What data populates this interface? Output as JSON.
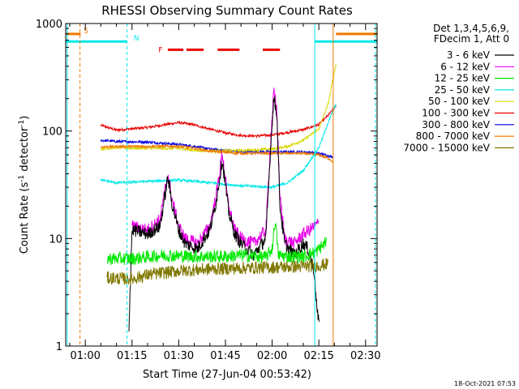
{
  "chart_data": {
    "type": "line",
    "title": "RHESSI Observing Summary Count Rates",
    "xlabel": "Start Time (27-Jun-04 00:53:42)",
    "ylabel_main": "Count Rate (s",
    "ylabel_sup": "-1",
    "ylabel_mid": " detector",
    "ylabel_sup2": "-1",
    "ylabel_end": ")",
    "footer": "18-Oct-2021 07:53",
    "xlim_min": [
      53.7,
      153.7
    ],
    "ylim": [
      1,
      1000
    ],
    "y_scale": "log",
    "x_ticks": [
      {
        "min": 60,
        "label": "01:00"
      },
      {
        "min": 75,
        "label": "01:15"
      },
      {
        "min": 90,
        "label": "01:30"
      },
      {
        "min": 105,
        "label": "01:45"
      },
      {
        "min": 120,
        "label": "02:00"
      },
      {
        "min": 135,
        "label": "02:15"
      },
      {
        "min": 150,
        "label": "02:30"
      }
    ],
    "y_ticks": [
      {
        "value": 1,
        "label": "1"
      },
      {
        "value": 10,
        "label": "10"
      },
      {
        "value": 100,
        "label": "100"
      },
      {
        "value": 1000,
        "label": "1000"
      }
    ],
    "legend": {
      "placement": "right",
      "header": [
        "Det 1,3,4,5,6,9,",
        "FDecim 1, Att 0"
      ],
      "entries": [
        {
          "label": "3 - 6 keV",
          "color": "#000000"
        },
        {
          "label": "6 - 12 keV",
          "color": "#e800e8"
        },
        {
          "label": "12 - 25 keV",
          "color": "#00e800"
        },
        {
          "label": "25 - 50 keV",
          "color": "#00e8e8"
        },
        {
          "label": "50 - 100 keV",
          "color": "#d8d800"
        },
        {
          "label": "100 - 300 keV",
          "color": "#e80000"
        },
        {
          "label": "300 - 800 keV",
          "color": "#0000e0"
        },
        {
          "label": "800 - 7000 keV",
          "color": "#f07800"
        },
        {
          "label": "7000 - 15000 keV",
          "color": "#807800"
        }
      ]
    },
    "flags": [
      {
        "label": "S",
        "color": "#f07800",
        "segments": [
          [
            53.7,
            58.5
          ],
          [
            140.5,
            153.7
          ]
        ],
        "value": 800
      },
      {
        "label": "N",
        "color": "#00e8e8",
        "segments": [
          [
            53.7,
            73.4
          ],
          [
            133.7,
            153.7
          ]
        ],
        "value": 680
      },
      {
        "label": "F",
        "color": "#e80000",
        "segments": [
          [
            86.5,
            91.5
          ],
          [
            92.5,
            98
          ],
          [
            102.5,
            109.5
          ],
          [
            117,
            122.5
          ]
        ],
        "value": 570
      }
    ],
    "vlines": [
      {
        "min": 54.2,
        "color": "#00e8e8",
        "dashed": false
      },
      {
        "min": 58.3,
        "color": "#f07800",
        "dashed": true
      },
      {
        "min": 73.4,
        "color": "#00e8e8",
        "dashed": true
      },
      {
        "min": 133.7,
        "color": "#00e8e8",
        "dashed": false
      },
      {
        "min": 139.6,
        "color": "#f07800",
        "dashed": false
      },
      {
        "min": 153.2,
        "color": "#00e8e8",
        "dashed": true
      }
    ],
    "series": [
      {
        "name": "100 - 300 keV",
        "color": "#e80000",
        "x": [
          65,
          70,
          80,
          90,
          95,
          100,
          105,
          110,
          115,
          120,
          125,
          130,
          135,
          138,
          140.5
        ],
        "y": [
          113,
          102,
          108,
          120,
          114,
          104,
          96,
          91,
          90,
          92,
          97,
          103,
          115,
          140,
          170
        ]
      },
      {
        "name": "300 - 800 keV",
        "color": "#0000e0",
        "x": [
          65,
          70,
          80,
          90,
          95,
          100,
          110,
          120,
          130,
          135,
          138,
          139.5
        ],
        "y": [
          82,
          80,
          79,
          75,
          72,
          68,
          64,
          64,
          64,
          62,
          59,
          57
        ]
      },
      {
        "name": "50 - 100 keV",
        "color": "#d8d800",
        "x": [
          65,
          70,
          80,
          90,
          95,
          100,
          110,
          120,
          125,
          130,
          135,
          138,
          140.5
        ],
        "y": [
          68,
          70,
          69,
          69,
          66,
          65,
          66,
          68,
          72,
          82,
          105,
          180,
          420
        ]
      },
      {
        "name": "800 - 7000 keV",
        "color": "#f07800",
        "x": [
          65,
          70,
          80,
          90,
          95,
          100,
          110,
          120,
          130,
          135,
          138,
          139.5
        ],
        "y": [
          71,
          72,
          72,
          72,
          69,
          65,
          62,
          62,
          62,
          60,
          56,
          52
        ]
      },
      {
        "name": "25 - 50 keV",
        "color": "#00e8e8",
        "x": [
          65,
          70,
          80,
          90,
          100,
          110,
          120,
          125,
          130,
          135,
          138,
          140.5
        ],
        "y": [
          35,
          33,
          34,
          35,
          33,
          31,
          30,
          33,
          43,
          70,
          120,
          180
        ]
      },
      {
        "name": "6 - 12 keV",
        "color": "#e800e8",
        "x": [
          75,
          80,
          84,
          86.5,
          88,
          90,
          92,
          96,
          100,
          102,
          104,
          106,
          108,
          110,
          114,
          118,
          119.5,
          120.5,
          121.5,
          122.5,
          124,
          127,
          130,
          132,
          135
        ],
        "y": [
          13,
          12,
          15,
          40,
          22,
          13,
          10,
          9,
          13,
          25,
          62,
          20,
          12,
          10,
          9,
          12,
          80,
          230,
          160,
          25,
          10,
          9,
          11,
          12,
          14
        ]
      },
      {
        "name": "3 - 6 keV",
        "color": "#000000",
        "x": [
          74,
          75,
          80,
          84,
          86.5,
          88,
          90,
          92,
          96,
          100,
          102,
          104,
          106,
          108,
          110,
          114,
          118,
          119.5,
          120.5,
          121.5,
          122.5,
          124,
          127,
          130,
          131.5,
          133.5,
          134.5,
          135.2
        ],
        "y": [
          1.5,
          12,
          11,
          13,
          37,
          20,
          12,
          9,
          8,
          12,
          22,
          54,
          18,
          11,
          9,
          7,
          10,
          70,
          200,
          150,
          20,
          9,
          7,
          9,
          8,
          5,
          2,
          1.5
        ]
      },
      {
        "name": "12 - 25 keV",
        "color": "#00e800",
        "x": [
          67,
          75,
          85,
          95,
          105,
          110,
          118,
          120,
          121,
          122,
          125,
          130,
          134,
          136,
          137.5
        ],
        "y": [
          6.5,
          6.5,
          7,
          6.8,
          6.8,
          7,
          6.7,
          8,
          15,
          7,
          6.8,
          6.8,
          7.5,
          8.5,
          9.5
        ]
      },
      {
        "name": "7000 - 15000 keV",
        "color": "#807800",
        "x": [
          67,
          75,
          80,
          90,
          100,
          110,
          120,
          130,
          135,
          138
        ],
        "y": [
          4.3,
          4.2,
          4.6,
          5,
          5.2,
          5.3,
          5.4,
          5.5,
          5.6,
          5.8
        ]
      }
    ]
  }
}
